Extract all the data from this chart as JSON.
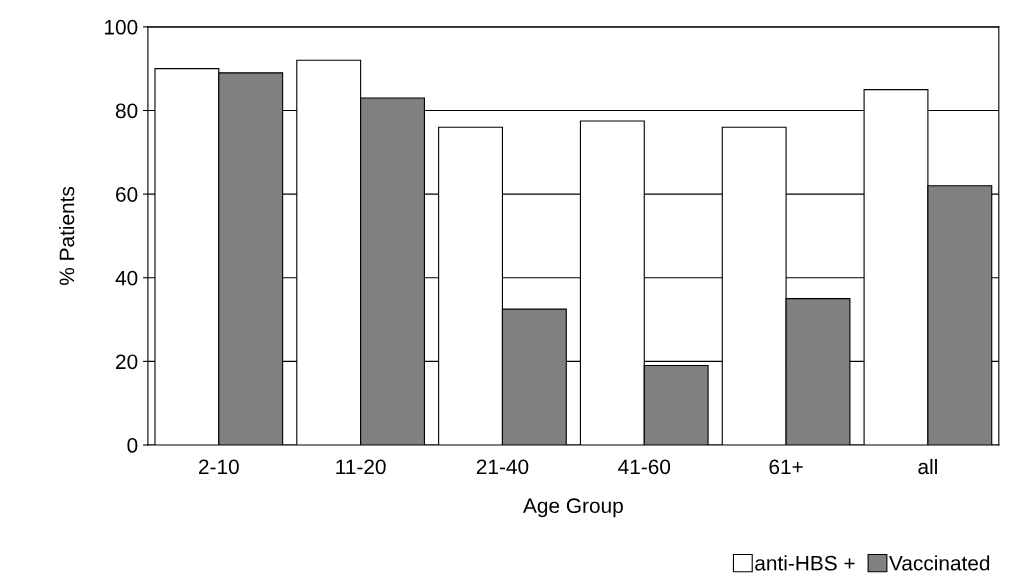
{
  "chart_data": {
    "type": "bar",
    "xlabel": "Age Group",
    "ylabel": "% Patients",
    "categories": [
      "2-10",
      "11-20",
      "21-40",
      "41-60",
      "61+",
      "all"
    ],
    "series": [
      {
        "name": "anti-HBS +",
        "color": "#ffffff",
        "values": [
          90,
          92,
          76,
          77.5,
          76,
          85
        ]
      },
      {
        "name": "Vaccinated",
        "color": "#808080",
        "values": [
          89,
          83,
          32.5,
          19,
          35,
          62
        ]
      }
    ],
    "ylim": [
      0,
      100
    ],
    "yticks": [
      0,
      20,
      40,
      60,
      80,
      100
    ],
    "grid": "y",
    "legend": "bottom right"
  }
}
